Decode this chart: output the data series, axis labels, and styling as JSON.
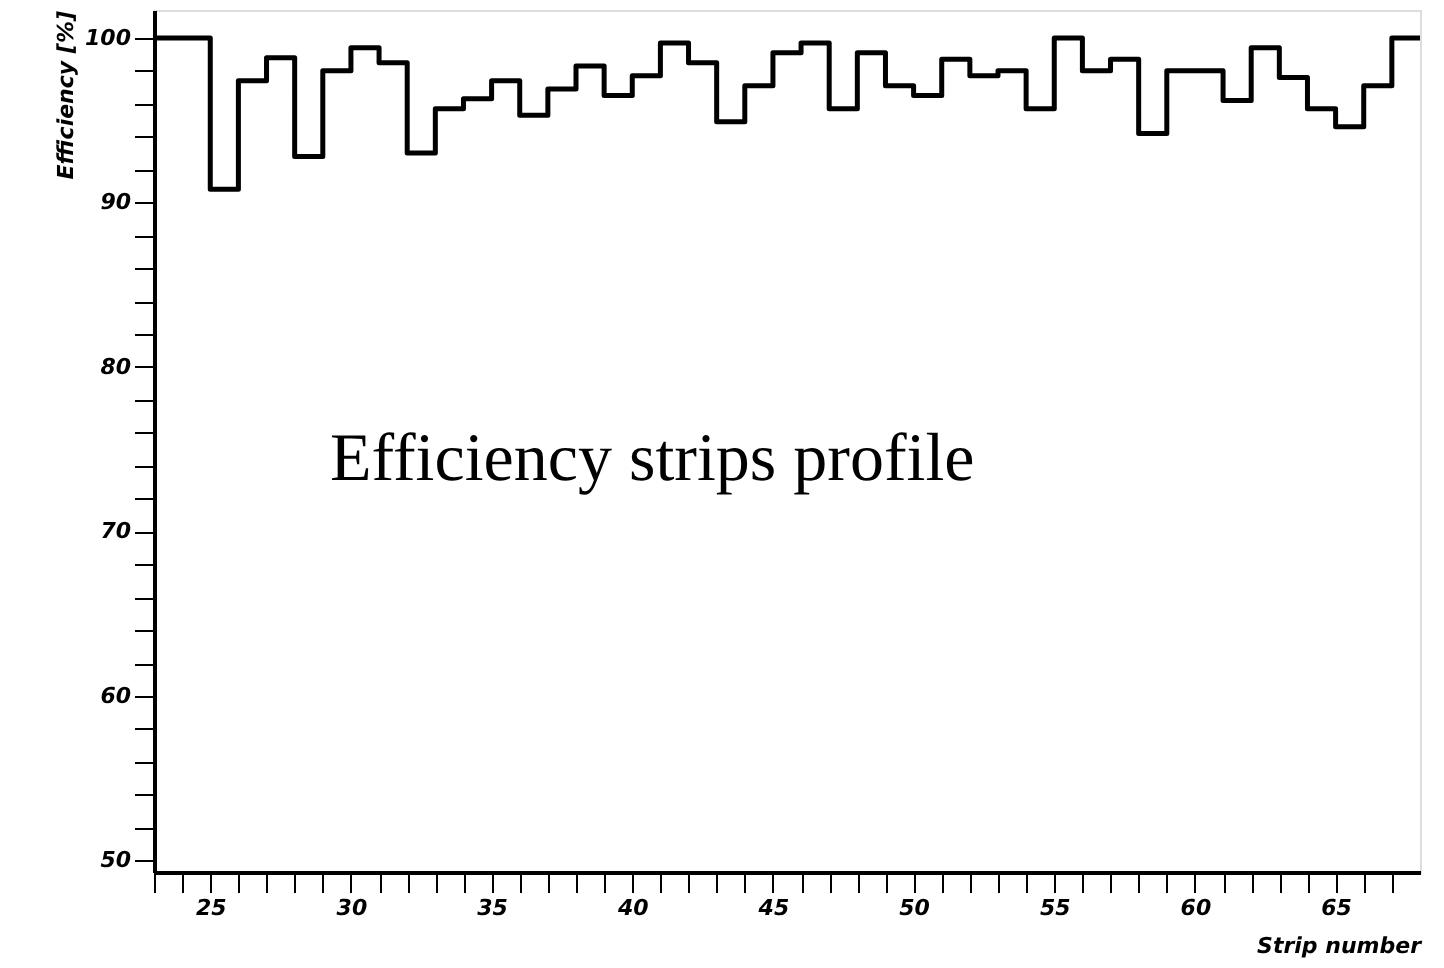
{
  "chart_data": {
    "type": "histogram",
    "xlabel": "Strip number",
    "ylabel": "Efficiency [%]",
    "annotations": [
      "Efficiency strips profile"
    ],
    "bins": [
      23,
      24,
      25,
      26,
      27,
      28,
      29,
      30,
      31,
      32,
      33,
      34,
      35,
      36,
      37,
      38,
      39,
      40,
      41,
      42,
      43,
      44,
      45,
      46,
      47,
      48,
      49,
      50,
      51,
      52,
      53,
      54,
      55,
      56,
      57,
      58,
      59,
      60,
      61,
      62,
      63,
      64,
      65,
      66,
      67,
      68
    ],
    "values": [
      100,
      100,
      90.8,
      97.4,
      98.8,
      92.8,
      98.0,
      99.4,
      98.5,
      93.0,
      95.7,
      96.3,
      97.4,
      95.3,
      96.9,
      98.3,
      96.5,
      97.7,
      99.7,
      98.5,
      94.9,
      97.1,
      99.1,
      99.7,
      95.7,
      99.1,
      97.1,
      96.5,
      98.7,
      97.7,
      98.0,
      95.7,
      100.0,
      98.0,
      98.7,
      94.2,
      98.0,
      98.0,
      96.2,
      99.4,
      97.6,
      95.7,
      94.6,
      97.1,
      100.0
    ],
    "color": "#000000",
    "xlim": [
      23,
      68
    ],
    "ylim": [
      49.3,
      101.7
    ],
    "xticks": [
      {
        "value": 23,
        "label": null
      },
      {
        "value": 24,
        "label": null
      },
      25,
      {
        "value": 26,
        "label": null
      },
      {
        "value": 27,
        "label": null
      },
      {
        "value": 28,
        "label": null
      },
      {
        "value": 29,
        "label": null
      },
      30,
      {
        "value": 31,
        "label": null
      },
      {
        "value": 32,
        "label": null
      },
      {
        "value": 33,
        "label": null
      },
      {
        "value": 34,
        "label": null
      },
      35,
      {
        "value": 36,
        "label": null
      },
      {
        "value": 37,
        "label": null
      },
      {
        "value": 38,
        "label": null
      },
      {
        "value": 39,
        "label": null
      },
      40,
      {
        "value": 41,
        "label": null
      },
      {
        "value": 42,
        "label": null
      },
      {
        "value": 43,
        "label": null
      },
      {
        "value": 44,
        "label": null
      },
      45,
      {
        "value": 46,
        "label": null
      },
      {
        "value": 47,
        "label": null
      },
      {
        "value": 48,
        "label": null
      },
      {
        "value": 49,
        "label": null
      },
      50,
      {
        "value": 51,
        "label": null
      },
      {
        "value": 52,
        "label": null
      },
      {
        "value": 53,
        "label": null
      },
      {
        "value": 54,
        "label": null
      },
      55,
      {
        "value": 56,
        "label": null
      },
      {
        "value": 57,
        "label": null
      },
      {
        "value": 58,
        "label": null
      },
      {
        "value": 59,
        "label": null
      },
      60,
      {
        "value": 61,
        "label": null
      },
      {
        "value": 62,
        "label": null
      },
      {
        "value": 63,
        "label": null
      },
      {
        "value": 64,
        "label": null
      },
      65,
      {
        "value": 66,
        "label": null
      },
      {
        "value": 67,
        "label": null
      }
    ],
    "yticks": [
      50,
      {
        "value": 52,
        "label": null
      },
      {
        "value": 54,
        "label": null
      },
      {
        "value": 56,
        "label": null
      },
      {
        "value": 58,
        "label": null
      },
      60,
      {
        "value": 62,
        "label": null
      },
      {
        "value": 64,
        "label": null
      },
      {
        "value": 66,
        "label": null
      },
      {
        "value": 68,
        "label": null
      },
      70,
      {
        "value": 72,
        "label": null
      },
      {
        "value": 74,
        "label": null
      },
      {
        "value": 76,
        "label": null
      },
      {
        "value": 78,
        "label": null
      },
      80,
      {
        "value": 82,
        "label": null
      },
      {
        "value": 84,
        "label": null
      },
      {
        "value": 86,
        "label": null
      },
      {
        "value": 88,
        "label": null
      },
      90,
      {
        "value": 92,
        "label": null
      },
      {
        "value": 94,
        "label": null
      },
      {
        "value": 96,
        "label": null
      },
      {
        "value": 98,
        "label": null
      },
      100
    ],
    "grid": false
  }
}
